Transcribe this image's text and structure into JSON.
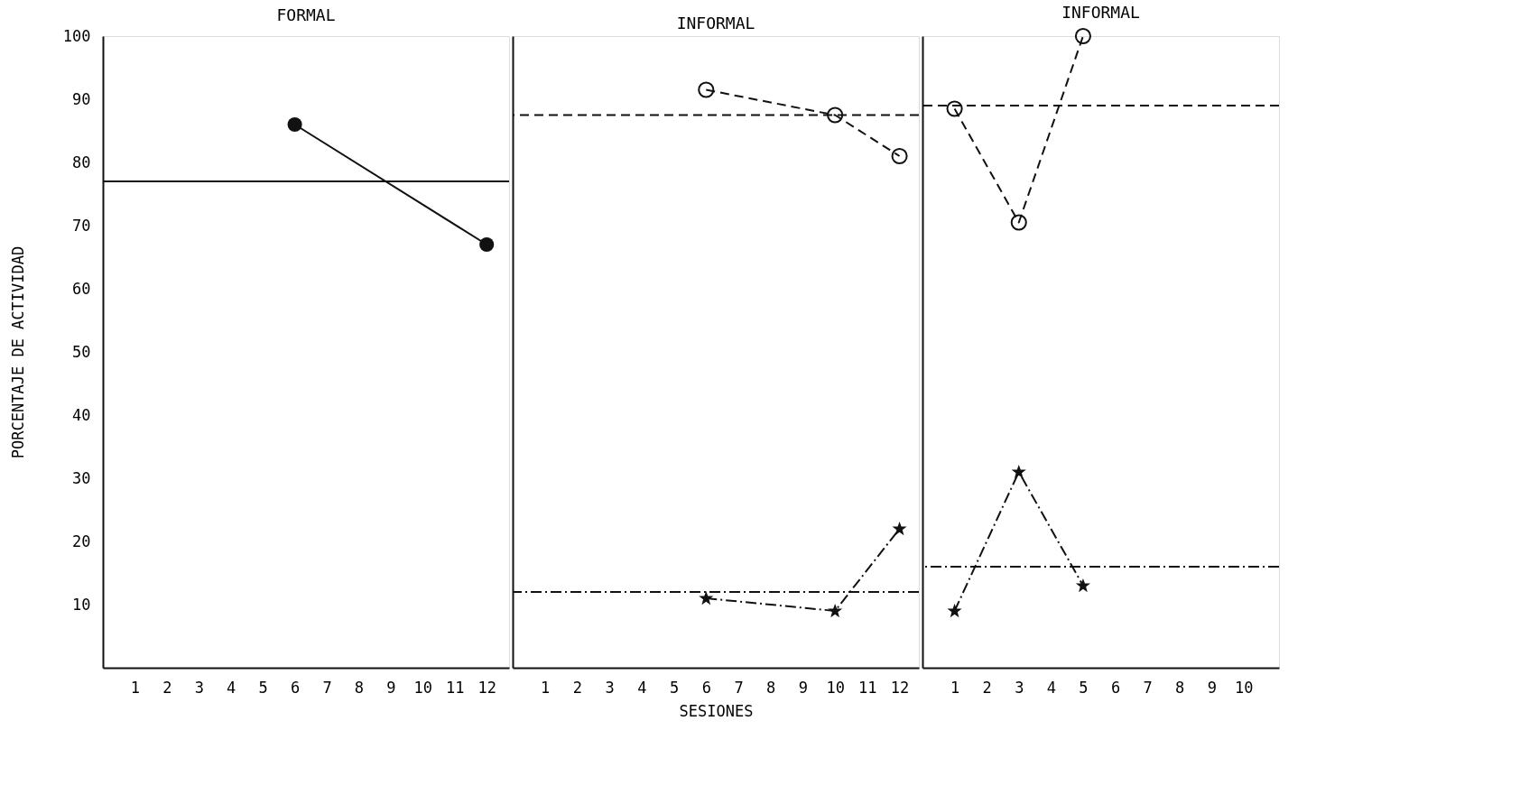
{
  "chart_data": [
    {
      "type": "line",
      "title": "FORMAL",
      "ylabel": "PORCENTAJE DE ACTIVIDAD",
      "xlim": [
        0,
        12.7
      ],
      "xticks": [
        1,
        2,
        3,
        4,
        5,
        6,
        7,
        8,
        9,
        10,
        11,
        12
      ],
      "ylim": [
        0,
        100
      ],
      "yticks": [
        10,
        20,
        30,
        40,
        50,
        60,
        70,
        80,
        90,
        100
      ],
      "grid": false,
      "series": [
        {
          "color": "#111111",
          "x": [
            6,
            12
          ],
          "values": [
            86,
            67
          ],
          "marker": "circle",
          "line_style": "solid"
        }
      ],
      "ref_lines": [
        {
          "axis": "y",
          "value": 77,
          "line_style": "solid",
          "color": "#111111"
        }
      ]
    },
    {
      "type": "line",
      "title": "INFORMAL",
      "xlabel": "SESIONES",
      "xlim": [
        0,
        12.6
      ],
      "xticks": [
        1,
        2,
        3,
        4,
        5,
        6,
        7,
        8,
        9,
        10,
        11,
        12
      ],
      "ylim": [
        0,
        100
      ],
      "yticks": [
        10,
        20,
        30,
        40,
        50,
        60,
        70,
        80,
        90,
        100
      ],
      "tick_labels": "x",
      "grid": false,
      "series": [
        {
          "color": "#111111",
          "x": [
            6,
            10,
            12
          ],
          "values": [
            91.5,
            87.5,
            81
          ],
          "marker": "circle",
          "line_style": "dashed"
        },
        {
          "color": "#111111",
          "x": [
            6,
            10,
            12
          ],
          "values": [
            11,
            9,
            22
          ],
          "marker": "star",
          "line_style": "dotted"
        }
      ],
      "ref_lines": [
        {
          "axis": "y",
          "value": 87.5,
          "line_style": "dashed",
          "color": "#111111"
        },
        {
          "axis": "y",
          "value": 12,
          "line_style": "dotted",
          "color": "#111111"
        }
      ]
    },
    {
      "type": "line",
      "title": "INFORMAL",
      "xlim": [
        0,
        11.1
      ],
      "xticks": [
        1,
        2,
        3,
        4,
        5,
        6,
        7,
        8,
        9,
        10
      ],
      "ylim": [
        0,
        100
      ],
      "yticks": [
        10,
        20,
        30,
        40,
        50,
        60,
        70,
        80,
        90,
        100
      ],
      "tick_labels": "x",
      "grid": false,
      "series": [
        {
          "color": "#111111",
          "x": [
            1,
            3,
            5
          ],
          "values": [
            88.5,
            70.5,
            100
          ],
          "marker": "circle",
          "line_style": "dashed"
        },
        {
          "color": "#111111",
          "x": [
            1,
            3,
            5
          ],
          "values": [
            9,
            31,
            13
          ],
          "marker": "star",
          "line_style": "dotted"
        }
      ],
      "ref_lines": [
        {
          "axis": "y",
          "value": 89,
          "line_style": "dashed",
          "color": "#111111"
        },
        {
          "axis": "y",
          "value": 16,
          "line_style": "dotted",
          "color": "#111111"
        }
      ]
    }
  ]
}
